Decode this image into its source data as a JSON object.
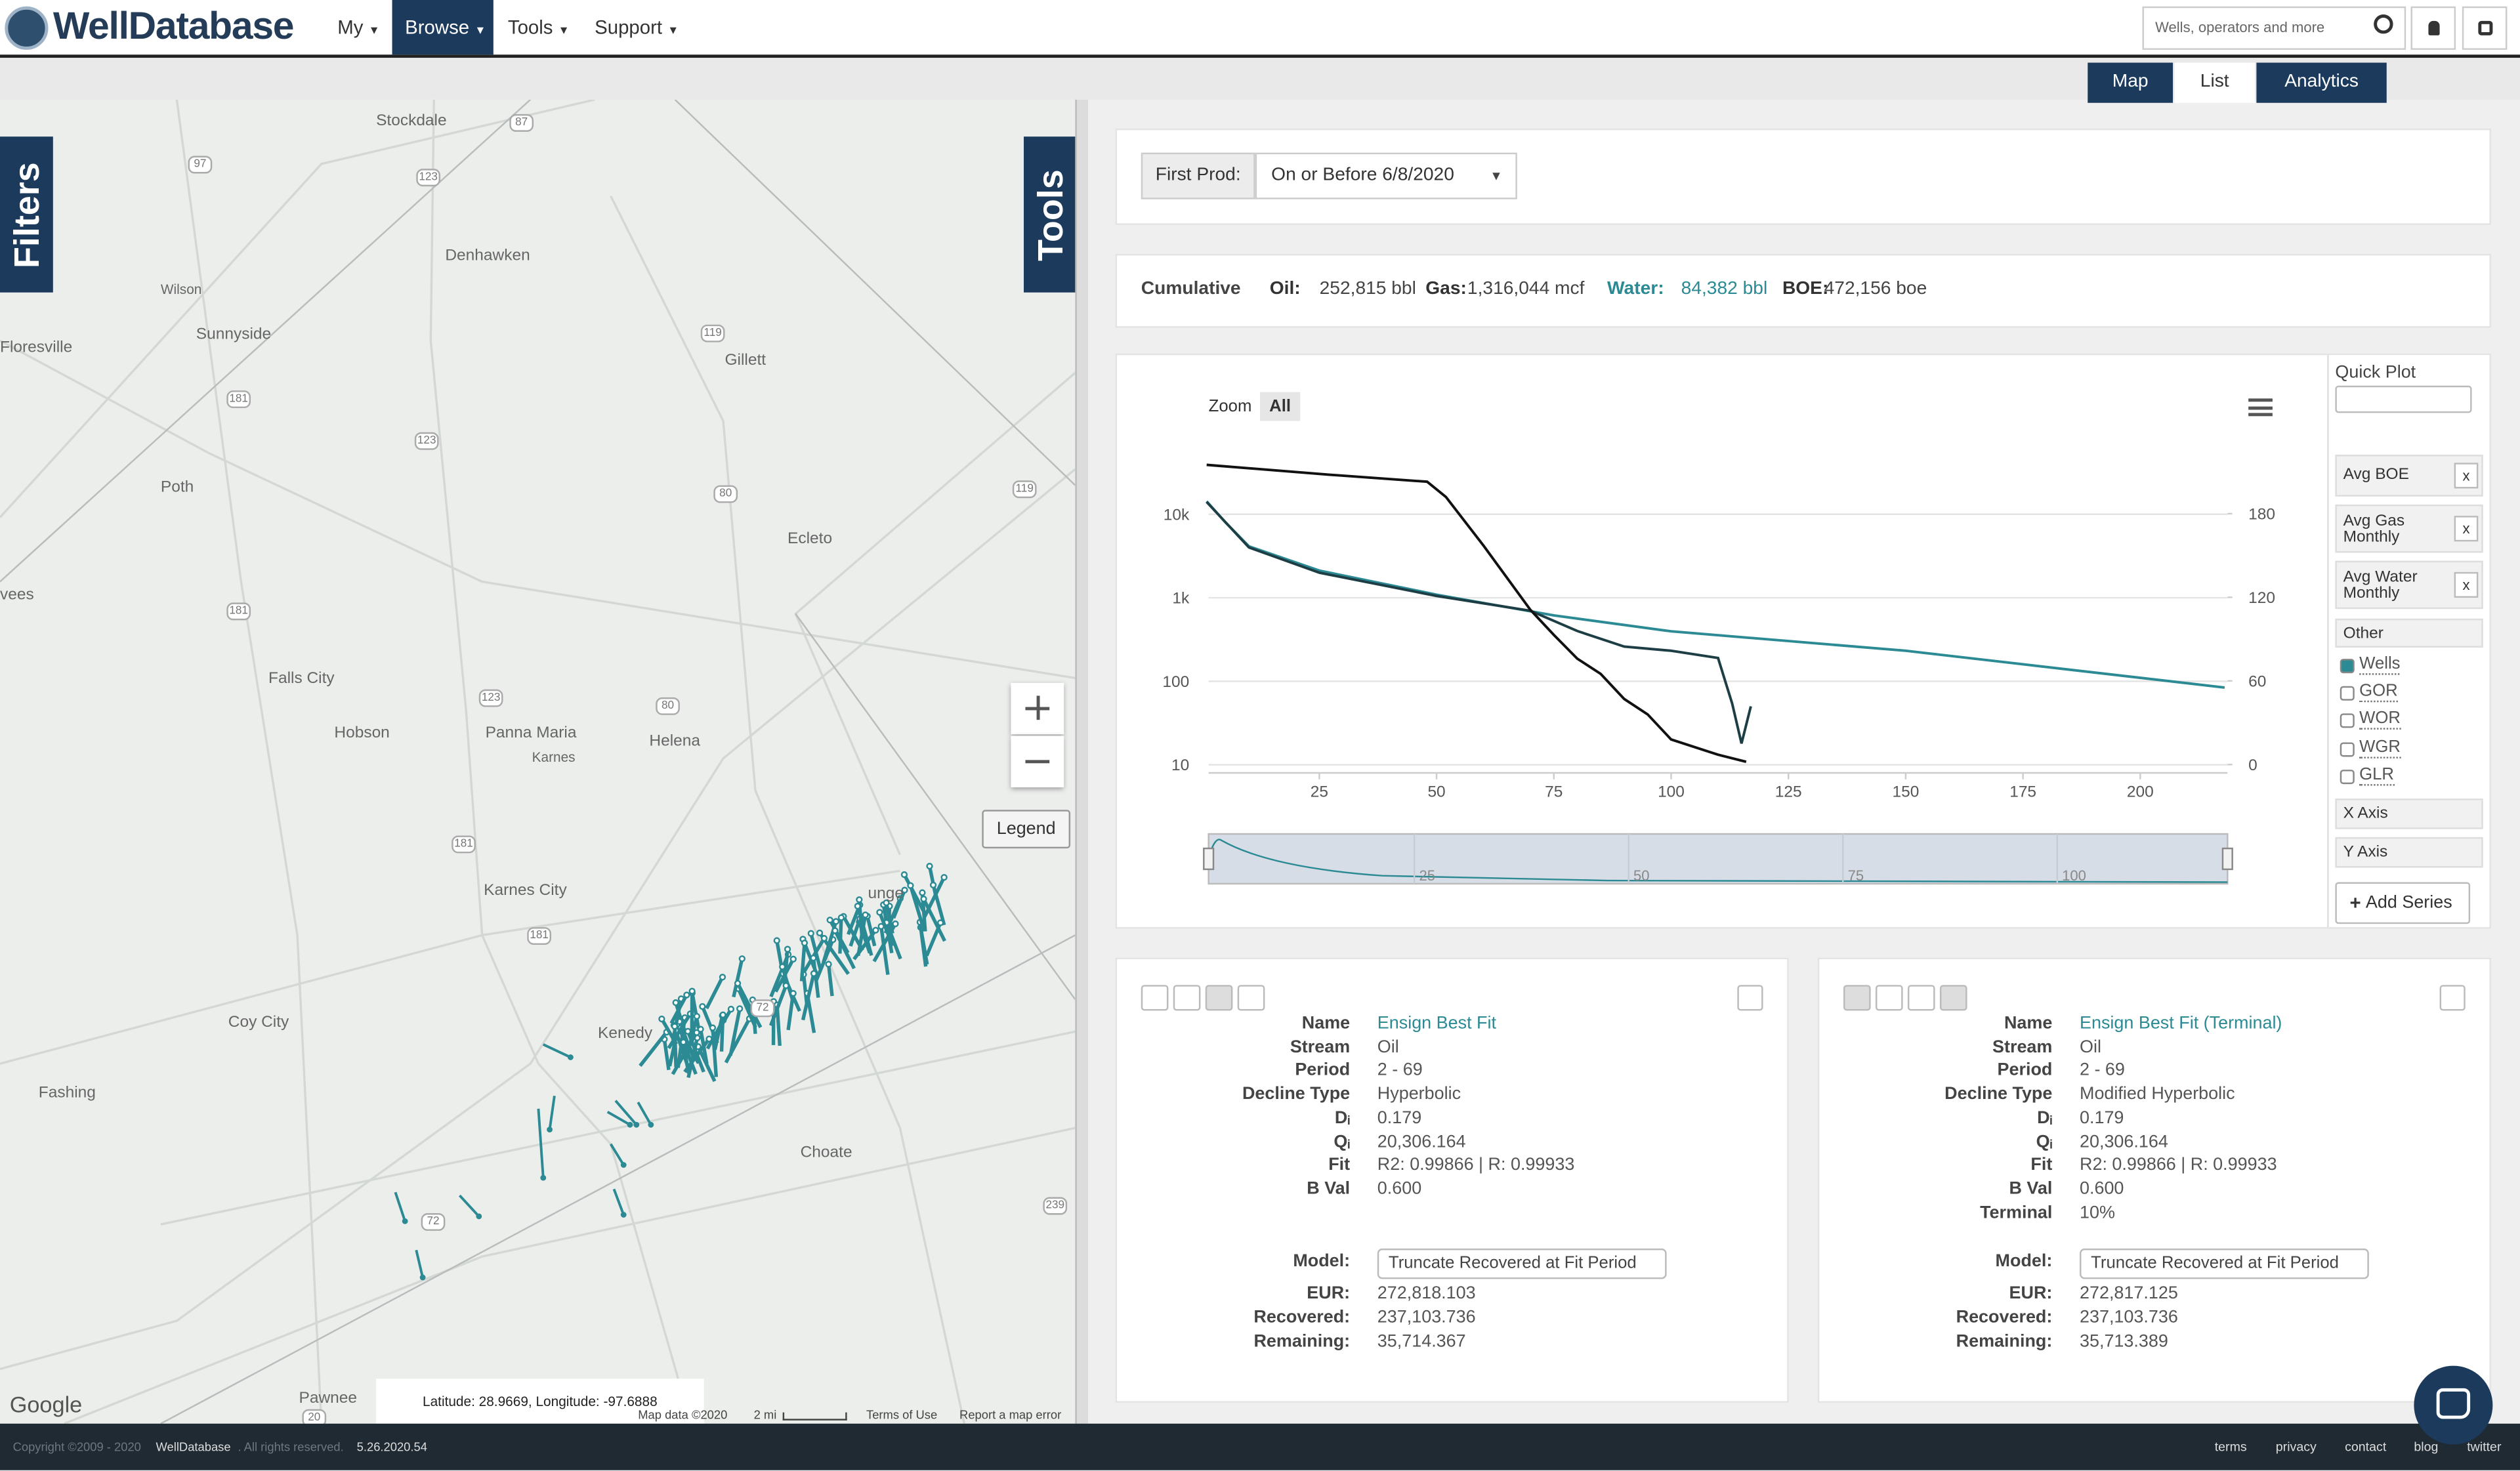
{
  "header": {
    "logo": "WellDatabase",
    "nav": [
      "My",
      "Browse",
      "Tools",
      "Support"
    ],
    "search_placeholder": "Wells, operators and more"
  },
  "view_tabs": [
    "Map",
    "List",
    "Analytics"
  ],
  "map": {
    "side_tabs": [
      "Filters",
      "Tools"
    ],
    "places": [
      "Stockdale",
      "Wilson",
      "Denhawken",
      "Sunnyside",
      "Floresville",
      "Gillett",
      "Poth",
      "Ecleto",
      "vees",
      "Falls City",
      "Hobson",
      "Panna Maria",
      "Karnes",
      "Helena",
      "Karnes City",
      "unge",
      "Kenedy",
      "Coy City",
      "Fashing",
      "Choate",
      "Pawnee"
    ],
    "routes": [
      "87",
      "97",
      "123",
      "123",
      "123",
      "119",
      "119",
      "181",
      "181",
      "181",
      "181",
      "80",
      "80",
      "72",
      "72",
      "239",
      "20"
    ],
    "legend_button": "Legend",
    "coordinates": "Latitude: 28.9669, Longitude: -97.6888",
    "google": "Google",
    "attribution": [
      "Map data ©2020",
      "2 mi",
      "Terms of Use",
      "Report a map error"
    ]
  },
  "filter": {
    "label": "First Prod:",
    "value": "On or Before 6/8/2020"
  },
  "cumulative": {
    "label": "Cumulative",
    "items": [
      {
        "label": "Oil:",
        "value": "252,815 bbl"
      },
      {
        "label": "Gas:",
        "value": "1,316,044 mcf"
      },
      {
        "label": "Water:",
        "value": "84,382 bbl"
      },
      {
        "label": "BOE:",
        "value": "472,156 boe"
      }
    ]
  },
  "zoom": {
    "label": "Zoom",
    "all": "All"
  },
  "chart_data": {
    "type": "line",
    "log_y": true,
    "grid": true,
    "xlim": [
      1.4,
      218.6
    ],
    "xticks": [
      25,
      50,
      75,
      100,
      125,
      150,
      175,
      200
    ],
    "ylim": [
      8,
      84000
    ],
    "yticks": [
      10,
      100,
      {
        "value": 1000,
        "label": "1k"
      },
      {
        "value": 10000,
        "label": "10k"
      }
    ],
    "y2lim": [
      -6,
      235
    ],
    "y2ticks": [
      0,
      60,
      120,
      180
    ],
    "series": [
      {
        "color": "#2b8a93",
        "x": [
          1,
          5,
          10,
          25,
          50,
          75,
          100,
          150,
          218
        ],
        "values": [
          14250,
          8000,
          4130,
          2120,
          1090,
          615,
          397,
          232,
          84
        ]
      },
      {
        "color": "#1e3e46",
        "x": [
          1,
          10,
          25,
          50,
          70,
          80,
          90,
          100,
          110,
          113,
          115,
          117
        ],
        "values": [
          14000,
          4000,
          2000,
          1050,
          700,
          400,
          260,
          232,
          190,
          54,
          18,
          50
        ]
      },
      {
        "color": "#111111",
        "axis": "y2",
        "x": [
          1,
          27,
          48,
          52,
          60,
          70,
          75,
          80,
          85,
          90,
          95,
          100,
          110,
          116
        ],
        "values": [
          215,
          208,
          203,
          192,
          157,
          111,
          93,
          76,
          65,
          47,
          36,
          18,
          7,
          2
        ]
      }
    ]
  },
  "navigator": {
    "xlim": [
      1,
      116.3
    ],
    "ticks": [
      25,
      50,
      75,
      100
    ]
  },
  "quick_plot": {
    "title": "Quick Plot",
    "items": [
      "Avg BOE",
      "Avg Gas Monthly",
      "Avg Water Monthly"
    ],
    "remove": "x",
    "other": "Other",
    "checks": [
      "Wells",
      "GOR",
      "WOR",
      "WGR",
      "GLR"
    ],
    "axes": [
      "X Axis",
      "Y Axis"
    ],
    "add_series": "Add Series"
  },
  "fit_cards": [
    {
      "rows": [
        [
          "Name",
          "Ensign Best Fit"
        ],
        [
          "Stream",
          "Oil"
        ],
        [
          "Period",
          "2 - 69"
        ],
        [
          "Decline Type",
          "Hyperbolic"
        ],
        [
          "Dᵢ",
          "0.179"
        ],
        [
          "Qᵢ",
          "20,306.164"
        ],
        [
          "Fit",
          "R2: 0.99866 | R: 0.99933"
        ],
        [
          "B Val",
          "0.600"
        ]
      ],
      "model_label": "Model:",
      "model": "Truncate Recovered at Fit Period",
      "results": [
        [
          "EUR:",
          "272,818.103"
        ],
        [
          "Recovered:",
          "237,103.736"
        ],
        [
          "Remaining:",
          "35,714.367"
        ]
      ]
    },
    {
      "rows": [
        [
          "Name",
          "Ensign Best Fit (Terminal)"
        ],
        [
          "Stream",
          "Oil"
        ],
        [
          "Period",
          "2 - 69"
        ],
        [
          "Decline Type",
          "Modified Hyperbolic"
        ],
        [
          "Dᵢ",
          "0.179"
        ],
        [
          "Qᵢ",
          "20,306.164"
        ],
        [
          "Fit",
          "R2: 0.99866 | R: 0.99933"
        ],
        [
          "B Val",
          "0.600"
        ],
        [
          "Terminal",
          "10%"
        ]
      ],
      "model_label": "Model:",
      "model": "Truncate Recovered at Fit Period",
      "results": [
        [
          "EUR:",
          "272,817.125"
        ],
        [
          "Recovered:",
          "237,103.736"
        ],
        [
          "Remaining:",
          "35,713.389"
        ]
      ]
    }
  ],
  "footer": {
    "copyright": "Copyright ©2009 - 2020",
    "brand": "WellDatabase",
    "rights": ". All rights reserved.",
    "version": "5.26.2020.54",
    "links": [
      "terms",
      "privacy",
      "contact",
      "blog",
      "twitter"
    ]
  }
}
